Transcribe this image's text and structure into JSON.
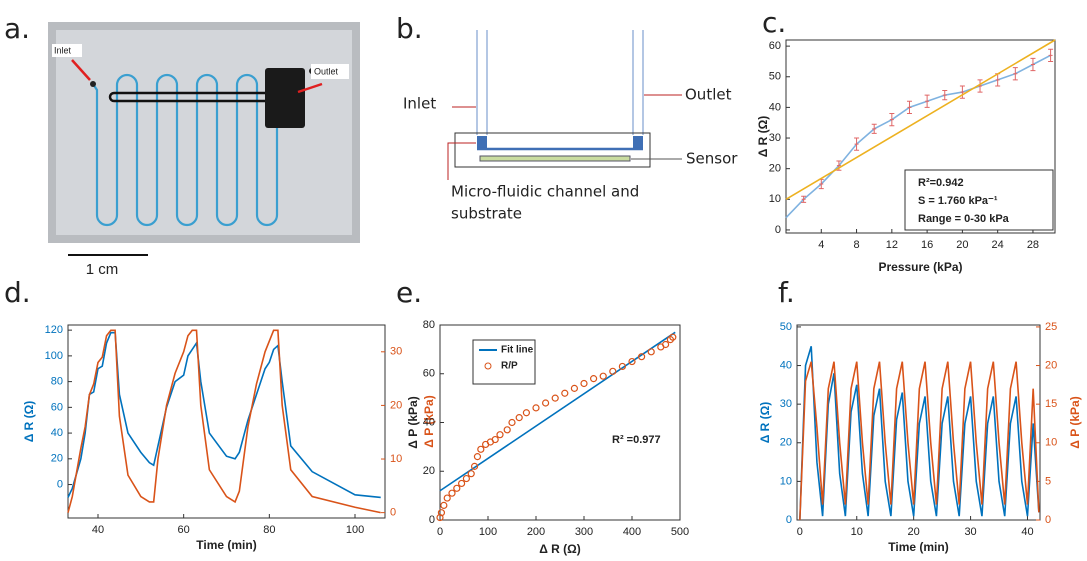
{
  "panels": {
    "labels": [
      "a.",
      "b.",
      "c.",
      "d.",
      "e.",
      "f."
    ],
    "photo": {
      "inlet": "Inlet",
      "outlet": "Outlet",
      "scale": "1 cm"
    },
    "diagram": {
      "inlet": "Inlet",
      "outlet": "Outlet",
      "sensor": "Sensor",
      "channel": [
        "Micro-fluidic channel and",
        "substrate"
      ]
    }
  },
  "chart_data": [
    {
      "type": "line",
      "xlabel": "Pressure (kPa)",
      "ylabel": "Δ R (Ω)",
      "xlim": [
        0,
        30.5
      ],
      "xticks": [
        4,
        8,
        12,
        16,
        20,
        24,
        28
      ],
      "ylim": [
        -1,
        62
      ],
      "yticks": [
        0,
        10,
        20,
        30,
        40,
        50,
        60
      ],
      "series": [
        {
          "color": "#7fb2e0",
          "error_color": "#e06666",
          "x": [
            0,
            2,
            4,
            6,
            8,
            10,
            12,
            14,
            16,
            18,
            20,
            22,
            24,
            26,
            28,
            30
          ],
          "values": [
            4,
            10,
            15,
            21,
            28,
            33,
            36,
            40,
            42,
            44,
            45,
            47,
            49,
            51,
            54,
            57
          ],
          "errors": [
            null,
            1,
            1.5,
            1.5,
            2,
            1.5,
            2,
            2,
            2,
            1.5,
            2,
            2,
            2,
            2,
            2,
            2
          ]
        },
        {
          "color": "#edb120",
          "x": [
            0,
            30.5
          ],
          "values": [
            10,
            62
          ]
        }
      ],
      "annotations": [
        "R²=0.942",
        "S = 1.760 kPa⁻¹",
        "Range = 0-30 kPa"
      ]
    },
    {
      "type": "line",
      "xlabel": "Time (min)",
      "ylabel": "Δ R (Ω)",
      "y2label": "Δ P (kPa)",
      "xlim": [
        33,
        107
      ],
      "xticks": [
        40,
        60,
        80,
        100
      ],
      "ylim": [
        -26,
        124
      ],
      "yticks": [
        0,
        20,
        40,
        60,
        80,
        100,
        120
      ],
      "y2lim": [
        -1,
        35
      ],
      "y2ticks": [
        0,
        10,
        20,
        30
      ],
      "x": [
        33,
        34,
        36,
        37,
        38,
        39,
        40,
        41,
        42,
        43,
        44,
        45,
        47,
        50,
        52,
        53,
        54,
        56,
        58,
        60,
        61,
        62,
        63,
        64,
        66,
        70,
        72,
        73,
        75,
        77,
        79,
        80,
        81,
        82,
        83,
        85,
        90,
        100,
        106
      ],
      "series": [
        {
          "color": "#0072bd",
          "values": [
            -10,
            -3,
            20,
            40,
            70,
            72,
            90,
            92,
            110,
            118,
            118,
            70,
            40,
            25,
            17,
            15,
            30,
            60,
            80,
            85,
            100,
            105,
            110,
            80,
            40,
            22,
            20,
            25,
            50,
            70,
            90,
            95,
            105,
            108,
            80,
            30,
            10,
            -8,
            -10
          ]
        },
        {
          "color": "#d95319",
          "axis": "y2",
          "values": [
            0,
            3,
            12,
            16,
            22,
            24,
            28,
            29,
            33,
            34,
            34,
            18,
            7,
            3,
            2,
            2,
            10,
            20,
            26,
            30,
            33,
            34,
            34,
            20,
            8,
            3,
            2,
            4,
            16,
            24,
            30,
            32,
            34,
            34,
            20,
            8,
            3,
            1,
            0
          ]
        }
      ]
    },
    {
      "type": "scatter",
      "xlabel": "Δ R (Ω)",
      "ylabel": "Δ P (kPa)",
      "xlim": [
        0,
        500
      ],
      "xticks": [
        0,
        100,
        200,
        300,
        400,
        500
      ],
      "ylim": [
        0,
        80
      ],
      "yticks": [
        0,
        20,
        40,
        60,
        80
      ],
      "legend": "upper left",
      "series": [
        {
          "name": "Fit line",
          "mode": "line",
          "color": "#0072bd",
          "x": [
            0,
            490
          ],
          "values": [
            12,
            77
          ]
        },
        {
          "name": "R/P",
          "mode": "circle",
          "color": "#d95319",
          "x": [
            0,
            3,
            8,
            15,
            25,
            35,
            45,
            55,
            65,
            72,
            78,
            85,
            95,
            105,
            115,
            125,
            140,
            150,
            165,
            180,
            200,
            220,
            240,
            260,
            280,
            300,
            320,
            340,
            360,
            380,
            400,
            420,
            440,
            460,
            470,
            480,
            485
          ],
          "values": [
            1,
            3,
            6,
            9,
            11,
            13,
            15,
            17,
            19,
            22,
            26,
            29,
            31,
            32,
            33,
            35,
            37,
            40,
            42,
            44,
            46,
            48,
            50,
            52,
            54,
            56,
            58,
            59,
            61,
            63,
            65,
            67,
            69,
            71,
            72,
            74,
            75
          ]
        }
      ],
      "annotations": [
        "R² =0.977"
      ]
    },
    {
      "type": "line",
      "xlabel": "Time (min)",
      "ylabel": "Δ R (Ω)",
      "y2label": "Δ P (kPa)",
      "xlim": [
        -0.5,
        42.2
      ],
      "xticks": [
        0,
        10,
        20,
        30,
        40
      ],
      "ylim": [
        0,
        50.5
      ],
      "yticks": [
        0,
        10,
        20,
        30,
        40,
        50
      ],
      "y2lim": [
        0,
        25.25
      ],
      "y2ticks": [
        0,
        5,
        10,
        15,
        20,
        25
      ],
      "x": [
        0,
        1,
        2,
        3,
        4,
        5,
        6,
        7,
        8,
        9,
        10,
        11,
        12,
        13,
        14,
        15,
        16,
        17,
        18,
        19,
        20,
        21,
        22,
        23,
        24,
        25,
        26,
        27,
        28,
        29,
        30,
        31,
        32,
        33,
        34,
        35,
        36,
        37,
        38,
        39,
        40,
        41,
        42
      ],
      "series": [
        {
          "color": "#0072bd",
          "values": [
            0,
            40,
            45,
            15,
            1,
            30,
            38,
            12,
            1,
            28,
            35,
            12,
            1,
            27,
            34,
            10,
            1,
            26,
            33,
            10,
            1,
            25,
            32,
            10,
            1,
            25,
            32,
            10,
            1,
            25,
            32,
            10,
            1,
            25,
            32,
            10,
            1,
            25,
            32,
            10,
            1,
            25,
            2
          ]
        },
        {
          "color": "#d95319",
          "axis": "y2",
          "values": [
            0,
            18,
            20.5,
            12,
            2,
            17,
            20.5,
            10,
            2,
            17,
            20.5,
            10,
            2,
            17,
            20.5,
            10,
            2,
            17,
            20.5,
            10,
            2,
            17,
            20.5,
            10,
            2,
            17,
            20.5,
            10,
            2,
            17,
            20.5,
            10,
            2,
            17,
            20.5,
            10,
            2,
            17,
            20.5,
            10,
            2,
            17,
            1
          ]
        }
      ]
    }
  ]
}
